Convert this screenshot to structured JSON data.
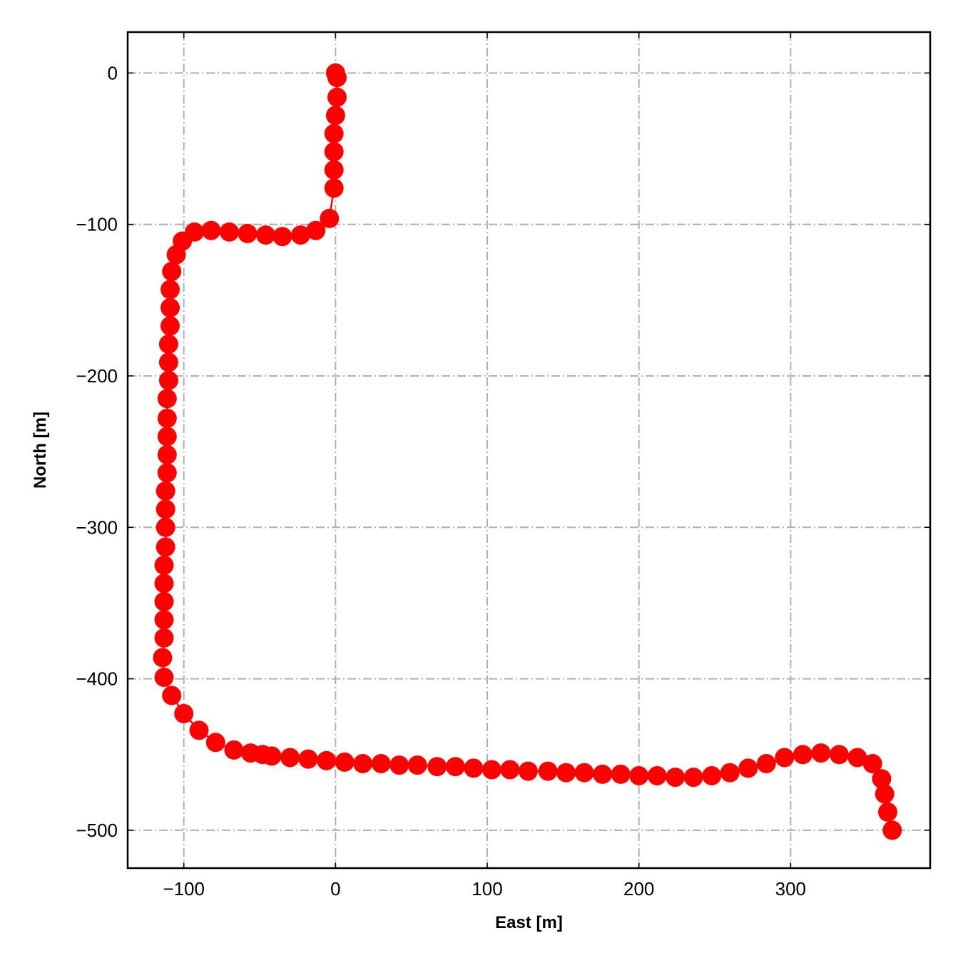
{
  "chart_data": {
    "type": "line",
    "title": "",
    "xlabel": "East [m]",
    "ylabel": "North [m]",
    "xlim": [
      -137,
      392
    ],
    "ylim": [
      -525,
      27
    ],
    "xticks": [
      -100,
      0,
      100,
      200,
      300
    ],
    "yticks": [
      0,
      -100,
      -200,
      -300,
      -400,
      -500
    ],
    "xtick_labels": [
      "−100",
      "0",
      "100",
      "200",
      "300"
    ],
    "ytick_labels": [
      "0",
      "−100",
      "−200",
      "−300",
      "−400",
      "−500"
    ],
    "grid": true,
    "series": [
      {
        "color": "#ff0000",
        "marker": "circle",
        "x": [
          0,
          1,
          1,
          0,
          -1,
          -1,
          -1,
          -1,
          -4,
          -13,
          -23,
          -35,
          -46,
          -58,
          -70,
          -82,
          -93,
          -101,
          -105,
          -108,
          -109,
          -109,
          -109,
          -110,
          -110,
          -110,
          -111,
          -111,
          -111,
          -111,
          -111,
          -112,
          -112,
          -112,
          -112,
          -113,
          -113,
          -113,
          -113,
          -113,
          -114,
          -113,
          -108,
          -100,
          -90,
          -79,
          -67,
          -56,
          -48,
          -42,
          -30,
          -18,
          -6,
          6,
          18,
          30,
          42,
          54,
          67,
          79,
          91,
          103,
          115,
          127,
          140,
          152,
          164,
          176,
          188,
          200,
          212,
          224,
          236,
          248,
          260,
          272,
          284,
          296,
          308,
          320,
          332,
          344,
          354,
          360,
          362,
          364,
          367
        ],
        "y": [
          0,
          -3,
          -16,
          -28,
          -40,
          -52,
          -64,
          -76,
          -96,
          -104,
          -107,
          -108,
          -107,
          -106,
          -105,
          -104,
          -105,
          -111,
          -120,
          -131,
          -143,
          -155,
          -167,
          -179,
          -191,
          -203,
          -215,
          -228,
          -240,
          -252,
          -264,
          -276,
          -288,
          -300,
          -313,
          -325,
          -337,
          -349,
          -361,
          -373,
          -386,
          -399,
          -411,
          -423,
          -434,
          -442,
          -447,
          -449,
          -450,
          -451,
          -452,
          -453,
          -454,
          -455,
          -456,
          -456,
          -457,
          -457,
          -458,
          -458,
          -459,
          -460,
          -460,
          -461,
          -461,
          -462,
          -462,
          -463,
          -463,
          -464,
          -464,
          -465,
          -465,
          -464,
          -462,
          -459,
          -456,
          -452,
          -450,
          -449,
          -450,
          -452,
          -456,
          -466,
          -476,
          -488,
          -500
        ]
      }
    ]
  }
}
